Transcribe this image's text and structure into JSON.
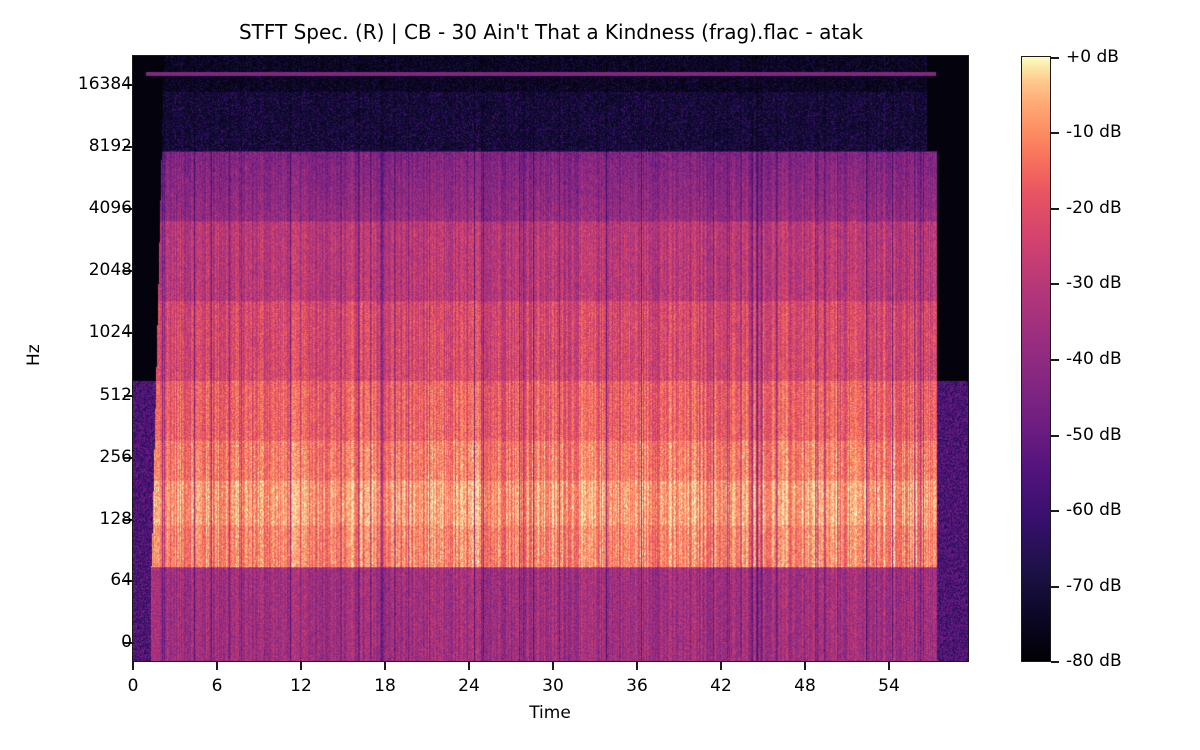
{
  "chart_data": {
    "type": "heatmap",
    "title": "STFT Spec. (R) | CB - 30 Ain't That a Kindness (frag).flac - atak",
    "xlabel": "Time",
    "ylabel": "Hz",
    "x_ticks": [
      "0",
      "6",
      "12",
      "18",
      "24",
      "30",
      "36",
      "42",
      "48",
      "54"
    ],
    "x_tick_values": [
      0,
      6,
      12,
      18,
      24,
      30,
      36,
      42,
      48,
      54
    ],
    "xlim": [
      0,
      59.5
    ],
    "y_ticks": [
      "0",
      "64",
      "128",
      "256",
      "512",
      "1024",
      "2048",
      "4096",
      "8192",
      "16384"
    ],
    "y_scale": "log2 (symlog)",
    "colorbar": {
      "colormap": "magma",
      "ticks": [
        "+0 dB",
        "-10 dB",
        "-20 dB",
        "-30 dB",
        "-40 dB",
        "-50 dB",
        "-60 dB",
        "-70 dB",
        "-80 dB"
      ],
      "range": [
        -80,
        0
      ]
    },
    "content_summary": {
      "audio_start_s": 1.0,
      "audio_end_s": 57.5,
      "max_content_freq_hz": 8192,
      "cutoff_line_hz": 17500,
      "loudest_band_hz": [
        64,
        256
      ]
    }
  }
}
